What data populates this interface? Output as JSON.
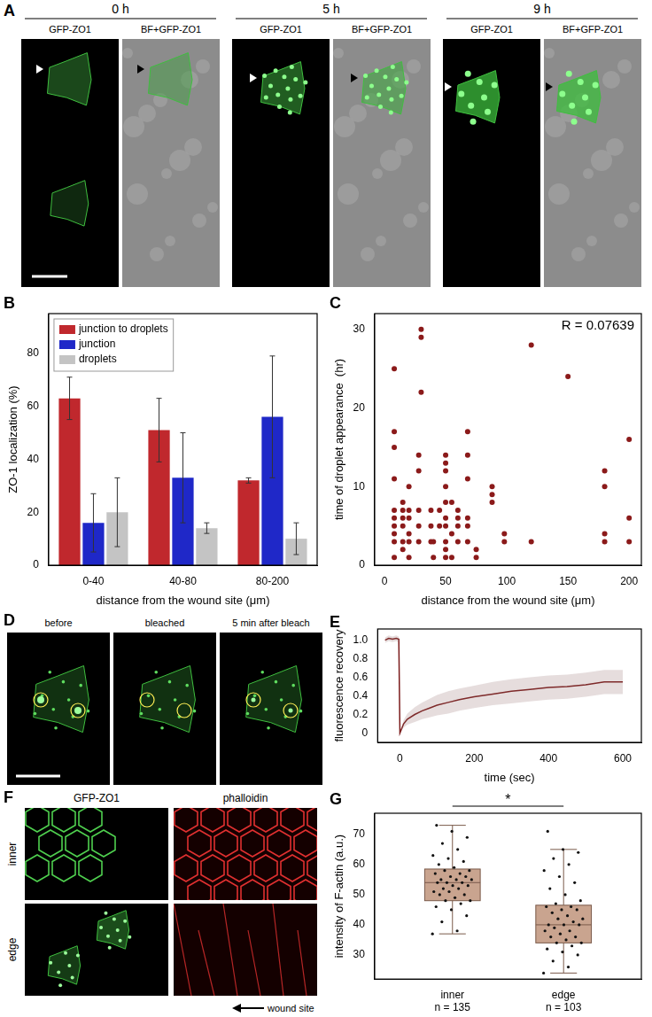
{
  "panels": {
    "A": {
      "label": "A",
      "timepoints": [
        "0 h",
        "5 h",
        "9 h"
      ],
      "channels": [
        "GFP-ZO1",
        "BF+GFP-ZO1"
      ]
    },
    "D": {
      "label": "D",
      "frames": [
        "before",
        "bleached",
        "5 min after bleach"
      ]
    },
    "F": {
      "label": "F",
      "channels": [
        "GFP-ZO1",
        "phalloidin"
      ],
      "rows": [
        "inner",
        "edge"
      ],
      "annotation": "wound site"
    }
  },
  "chart_data": [
    {
      "panel": "B",
      "type": "bar",
      "categories": [
        "0-40",
        "40-80",
        "80-200"
      ],
      "x_label": "distance from the wound site (μm)",
      "y_label": "ZO-1 localization (%)",
      "ylim": [
        0,
        95
      ],
      "yticks": [
        0,
        20,
        40,
        60,
        80
      ],
      "grid": false,
      "legend": "upper left",
      "series": [
        {
          "name": "junction to droplets",
          "color": "#c0282d",
          "values": [
            63,
            51,
            32
          ],
          "errors": [
            8,
            12,
            1
          ]
        },
        {
          "name": "junction",
          "color": "#1f28c8",
          "values": [
            16,
            33,
            56
          ],
          "errors": [
            11,
            17,
            23
          ]
        },
        {
          "name": "droplets",
          "color": "#c4c4c4",
          "values": [
            20,
            14,
            10
          ],
          "errors": [
            13,
            2,
            6
          ]
        }
      ]
    },
    {
      "panel": "C",
      "type": "scatter",
      "x_label": "distance from the wound site (μm)",
      "y_label": "time of droplet appearance  (hr)",
      "annotation": "R = 0.07639",
      "xlim": [
        -8,
        210
      ],
      "xticks": [
        0,
        50,
        100,
        150,
        200
      ],
      "ylim": [
        0,
        32
      ],
      "yticks": [
        0,
        10,
        20,
        30
      ],
      "grid": false,
      "color": "#8b1a1a",
      "x": [
        8,
        8,
        8,
        8,
        8,
        8,
        8,
        8,
        8,
        8,
        15,
        15,
        15,
        15,
        15,
        15,
        20,
        20,
        20,
        20,
        20,
        20,
        28,
        28,
        28,
        28,
        28,
        30,
        30,
        30,
        38,
        38,
        38,
        40,
        40,
        45,
        45,
        50,
        50,
        50,
        50,
        50,
        50,
        50,
        50,
        50,
        50,
        55,
        55,
        55,
        60,
        60,
        60,
        60,
        68,
        68,
        68,
        68,
        68,
        68,
        75,
        75,
        88,
        88,
        88,
        98,
        98,
        120,
        120,
        150,
        180,
        180,
        180,
        180,
        200,
        200,
        200
      ],
      "values": [
        1,
        3,
        4,
        5,
        6,
        7,
        11,
        15,
        17,
        25,
        2,
        3,
        5,
        6,
        7,
        8,
        1,
        3,
        4,
        6,
        7,
        10,
        3,
        5,
        7,
        12,
        14,
        22,
        29,
        30,
        3,
        5,
        7,
        1,
        3,
        5,
        7,
        1,
        2,
        3,
        5,
        6,
        8,
        10,
        12,
        13,
        14,
        1,
        4,
        8,
        3,
        5,
        6,
        7,
        3,
        5,
        6,
        11,
        14,
        17,
        1,
        2,
        8,
        9,
        10,
        3,
        4,
        3,
        28,
        24,
        3,
        4,
        10,
        12,
        3,
        6,
        16
      ]
    },
    {
      "panel": "E",
      "type": "line",
      "x_label": "time (sec)",
      "y_label": "fluorescence recovery",
      "xlim": [
        -60,
        650
      ],
      "xticks": [
        0,
        200,
        400,
        600
      ],
      "ylim": [
        -0.1,
        1.12
      ],
      "yticks": [
        0,
        0.2,
        0.4,
        0.6,
        0.8,
        {
          "value": 1,
          "label": "1.0"
        }
      ],
      "grid": false,
      "color": "#7a1a1a",
      "x": [
        -40,
        -30,
        -20,
        -10,
        -3,
        0,
        10,
        20,
        40,
        60,
        80,
        100,
        130,
        160,
        200,
        250,
        300,
        350,
        400,
        450,
        500,
        550,
        600
      ],
      "values": [
        1.0,
        1.02,
        1.01,
        1.02,
        1.01,
        0,
        0.1,
        0.15,
        0.2,
        0.24,
        0.27,
        0.3,
        0.33,
        0.36,
        0.39,
        0.42,
        0.45,
        0.47,
        0.49,
        0.5,
        0.52,
        0.55,
        0.55
      ],
      "lower": [
        0.97,
        0.99,
        0.98,
        0.99,
        0.98,
        0,
        0.06,
        0.09,
        0.12,
        0.15,
        0.17,
        0.19,
        0.21,
        0.24,
        0.27,
        0.3,
        0.32,
        0.34,
        0.36,
        0.37,
        0.39,
        0.42,
        0.42
      ],
      "upper": [
        1.03,
        1.05,
        1.04,
        1.05,
        1.04,
        0,
        0.14,
        0.21,
        0.28,
        0.33,
        0.37,
        0.41,
        0.45,
        0.48,
        0.51,
        0.55,
        0.58,
        0.6,
        0.62,
        0.63,
        0.65,
        0.68,
        0.68
      ]
    },
    {
      "panel": "G",
      "type": "box",
      "categories": [
        "inner",
        "edge"
      ],
      "n_labels": [
        "n = 135",
        "n = 103"
      ],
      "y_label": "intensity of F-actin (a.u.)",
      "annotation": "*",
      "ylim": [
        22,
        77
      ],
      "yticks": [
        30,
        40,
        50,
        60,
        70
      ],
      "grid": false,
      "color": "#c9a48f",
      "boxes": [
        {
          "min": 37,
          "q1": 48,
          "median": 54,
          "q3": 58.5,
          "max": 73
        },
        {
          "min": 24,
          "q1": 34,
          "median": 40,
          "q3": 46.5,
          "max": 65
        }
      ],
      "points": [
        [
          37,
          38,
          41,
          43,
          45,
          46,
          47,
          48,
          48,
          49,
          50,
          50,
          51,
          51,
          52,
          52,
          53,
          53,
          54,
          54,
          54,
          55,
          55,
          55,
          56,
          56,
          57,
          57,
          58,
          58,
          59,
          60,
          61,
          62,
          63,
          65,
          67,
          69,
          71,
          73
        ],
        [
          24,
          26,
          28,
          30,
          31,
          32,
          33,
          34,
          34,
          35,
          36,
          36,
          37,
          38,
          38,
          39,
          40,
          40,
          40,
          41,
          42,
          42,
          43,
          44,
          45,
          45,
          46,
          46,
          47,
          48,
          50,
          52,
          54,
          56,
          58,
          60,
          62,
          64,
          65,
          71
        ]
      ]
    }
  ]
}
